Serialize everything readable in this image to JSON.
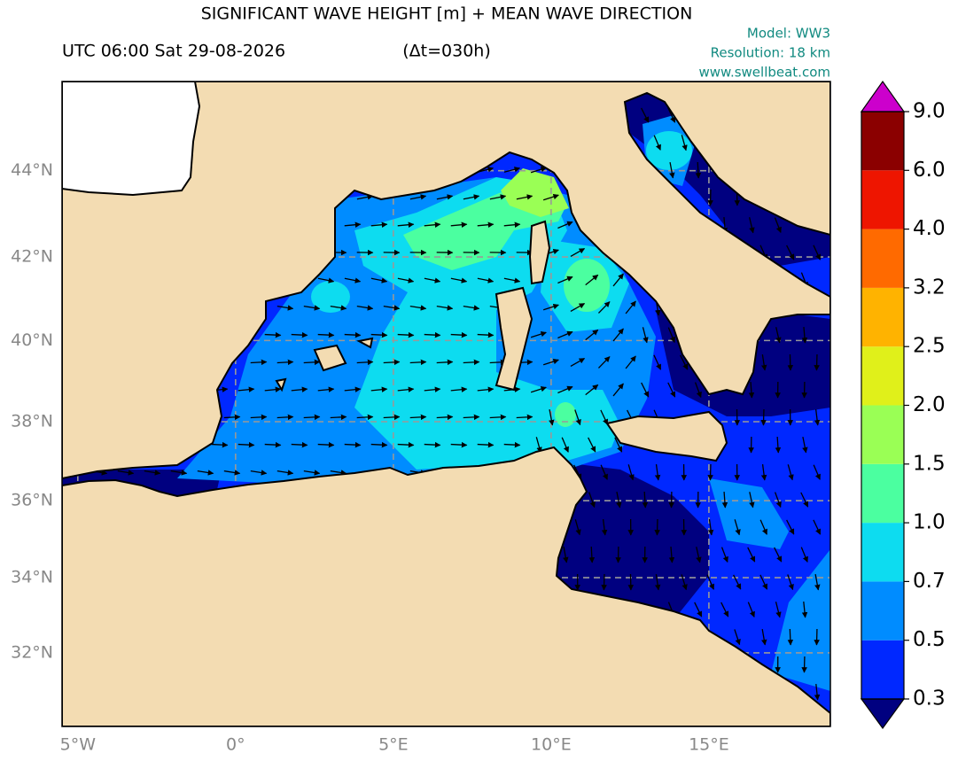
{
  "header": {
    "title": "SIGNIFICANT WAVE HEIGHT [m] + MEAN WAVE DIRECTION",
    "time": "UTC 06:00 Sat 29-08-2026",
    "lead": "(Δt=030h)",
    "model": "Model: WW3",
    "resolution": "Resolution: 18 km",
    "source": "www.swellbeat.com"
  },
  "map": {
    "lon_extent": [
      -5.5,
      18.85
    ],
    "lat_extent": [
      30,
      46
    ],
    "lat_ticks": [
      {
        "value": 32,
        "label": "32°N"
      },
      {
        "value": 34,
        "label": "34°N"
      },
      {
        "value": 36,
        "label": "36°N"
      },
      {
        "value": 38,
        "label": "38°N"
      },
      {
        "value": 40,
        "label": "40°N"
      },
      {
        "value": 42,
        "label": "42°N"
      },
      {
        "value": 44,
        "label": "44°N"
      }
    ],
    "lon_ticks": [
      {
        "value": -5,
        "label": "5°W"
      },
      {
        "value": 0,
        "label": "0°"
      },
      {
        "value": 5,
        "label": "5°E"
      },
      {
        "value": 10,
        "label": "10°E"
      },
      {
        "value": 15,
        "label": "15°E"
      }
    ]
  },
  "colorbar": {
    "levels": [
      {
        "value": 0.3,
        "label": "0.3"
      },
      {
        "value": 0.5,
        "label": "0.5"
      },
      {
        "value": 0.7,
        "label": "0.7"
      },
      {
        "value": 1.0,
        "label": "1.0"
      },
      {
        "value": 1.5,
        "label": "1.5"
      },
      {
        "value": 2.0,
        "label": "2.0"
      },
      {
        "value": 2.5,
        "label": "2.5"
      },
      {
        "value": 3.2,
        "label": "3.2"
      },
      {
        "value": 4.0,
        "label": "4.0"
      },
      {
        "value": 6.0,
        "label": "6.0"
      },
      {
        "value": 9.0,
        "label": "9.0"
      }
    ],
    "colors": [
      "#000080",
      "#0028ff",
      "#008cff",
      "#0ddcf0",
      "#4bffa0",
      "#9aff55",
      "#e0f01a",
      "#ffb300",
      "#ff6a00",
      "#ee1500",
      "#8b0000",
      "#cc00cc"
    ]
  }
}
